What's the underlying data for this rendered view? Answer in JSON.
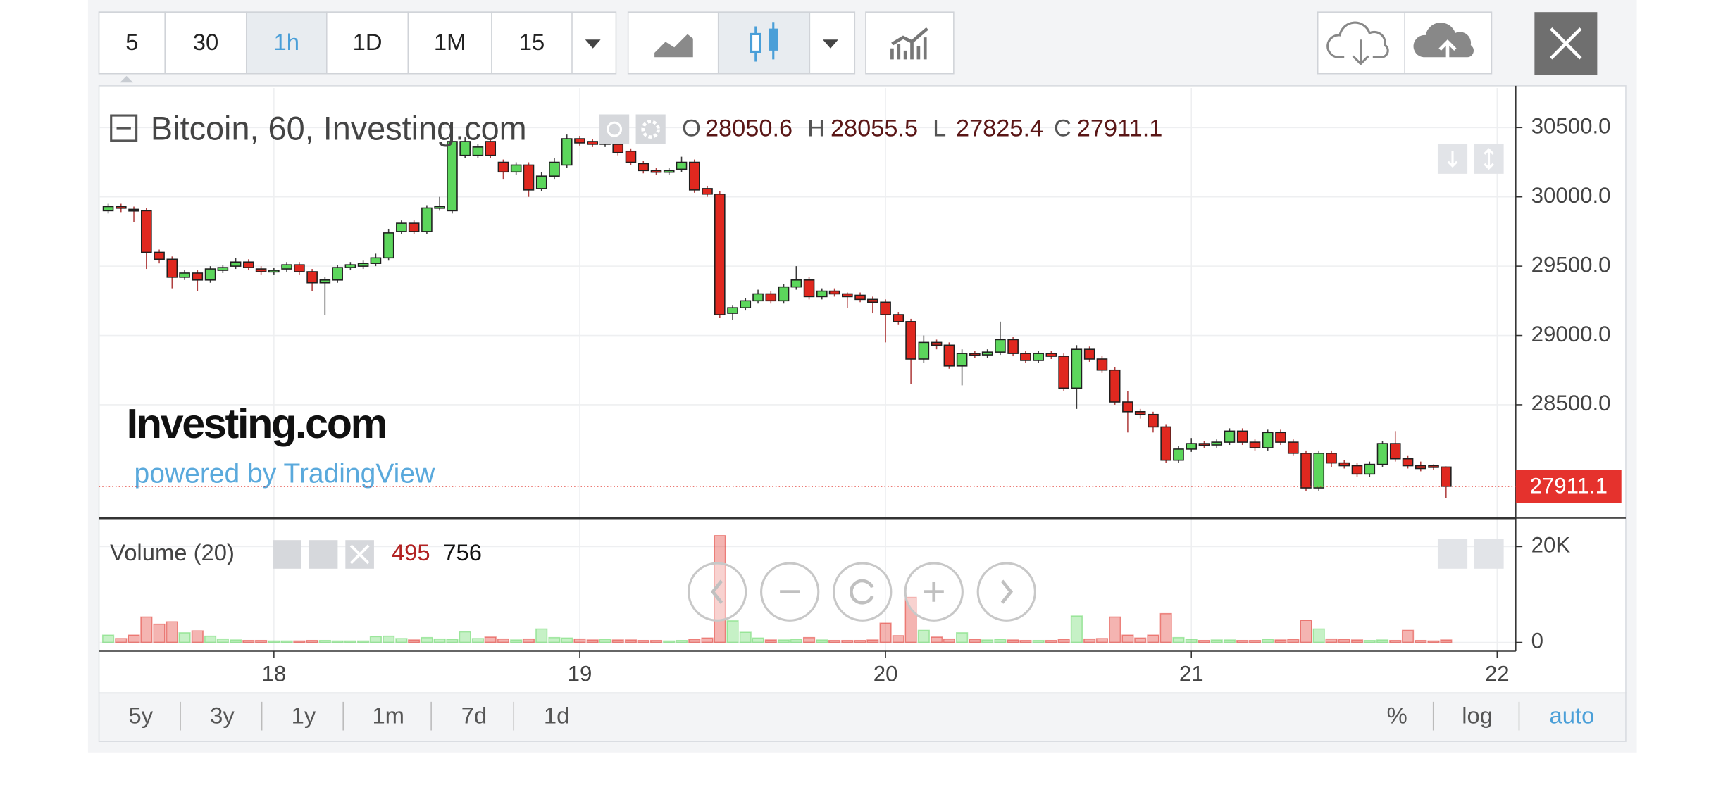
{
  "toolbar": {
    "intervals": [
      "5",
      "30",
      "1h",
      "1D",
      "1M",
      "15"
    ],
    "active_interval_index": 2
  },
  "range_buttons": [
    "5y",
    "3y",
    "1y",
    "1m",
    "7d",
    "1d"
  ],
  "scale_buttons": [
    "%",
    "log",
    "auto"
  ],
  "active_scale_index": 2,
  "chart_data": {
    "type": "candlestick",
    "title": "Bitcoin, 60, Investing.com",
    "legend_labels": [
      "O",
      "H",
      "L",
      "C"
    ],
    "watermark": "Investing.com",
    "watermark_subtitle": "powered by TradingView",
    "up_color": "#5cd65c",
    "down_color": "#e0281f",
    "grid": true,
    "xlim": [
      17.428,
      22.061
    ],
    "xticks": [
      18,
      19,
      20,
      21,
      22
    ],
    "ylim": [
      27690,
      30786
    ],
    "yticks": [
      {
        "value": 28500,
        "label": "28500.0"
      },
      {
        "value": 29000,
        "label": "29000.0"
      },
      {
        "value": 29500,
        "label": "29500.0"
      },
      {
        "value": 30000,
        "label": "30000.0"
      },
      {
        "value": 30500,
        "label": "30500.0"
      }
    ],
    "x": [
      17.458,
      17.5,
      17.542,
      17.583,
      17.625,
      17.667,
      17.708,
      17.75,
      17.792,
      17.833,
      17.875,
      17.917,
      17.958,
      18,
      18.042,
      18.083,
      18.125,
      18.167,
      18.208,
      18.25,
      18.292,
      18.333,
      18.375,
      18.417,
      18.458,
      18.5,
      18.542,
      18.583,
      18.625,
      18.667,
      18.708,
      18.75,
      18.792,
      18.833,
      18.875,
      18.917,
      18.958,
      19,
      19.042,
      19.083,
      19.125,
      19.167,
      19.208,
      19.25,
      19.292,
      19.333,
      19.375,
      19.417,
      19.458,
      19.5,
      19.542,
      19.583,
      19.625,
      19.667,
      19.708,
      19.75,
      19.792,
      19.833,
      19.875,
      19.917,
      19.958,
      20,
      20.042,
      20.083,
      20.125,
      20.167,
      20.208,
      20.25,
      20.292,
      20.333,
      20.375,
      20.417,
      20.458,
      20.5,
      20.542,
      20.583,
      20.625,
      20.667,
      20.708,
      20.75,
      20.792,
      20.833,
      20.875,
      20.917,
      20.958,
      21,
      21.042,
      21.083,
      21.125,
      21.167,
      21.208,
      21.25,
      21.292,
      21.333,
      21.375,
      21.417,
      21.458,
      21.5,
      21.542,
      21.583,
      21.625,
      21.667,
      21.708,
      21.75,
      21.792,
      21.833
    ],
    "open": [
      29900,
      29930,
      29910,
      29900,
      29600,
      29550,
      29420,
      29450,
      29400,
      29470,
      29500,
      29530,
      29480,
      29460,
      29480,
      29510,
      29460,
      29380,
      29400,
      29490,
      29500,
      29520,
      29560,
      29750,
      29810,
      29750,
      29920,
      29900,
      30300,
      30300,
      30400,
      30250,
      30180,
      30230,
      30060,
      30150,
      30230,
      30420,
      30400,
      30380,
      30380,
      30330,
      30240,
      30190,
      30180,
      30200,
      30250,
      30060,
      30020,
      29160,
      29200,
      29250,
      29300,
      29250,
      29350,
      29400,
      29280,
      29320,
      29300,
      29290,
      29260,
      29240,
      29150,
      29100,
      28830,
      28950,
      28930,
      28780,
      28870,
      28860,
      28880,
      28970,
      28870,
      28820,
      28870,
      28850,
      28620,
      28900,
      28830,
      28750,
      28520,
      28450,
      28430,
      28340,
      28100,
      28180,
      28220,
      28210,
      28230,
      28310,
      28230,
      28190,
      28300,
      28230,
      28150,
      27900,
      28150,
      28080,
      28060,
      28000,
      28070,
      28220,
      28110,
      28060,
      28060,
      28050.6
    ],
    "high": [
      29950,
      29950,
      29930,
      29920,
      29620,
      29570,
      29470,
      29470,
      29500,
      29510,
      29560,
      29550,
      29500,
      29490,
      29530,
      29530,
      29480,
      29420,
      29510,
      29530,
      29540,
      29590,
      29770,
      29830,
      29830,
      29940,
      30000,
      30420,
      30430,
      30380,
      30420,
      30270,
      30250,
      30250,
      30180,
      30280,
      30450,
      30440,
      30420,
      30420,
      30400,
      30350,
      30260,
      30210,
      30210,
      30290,
      30270,
      30080,
      30040,
      29220,
      29270,
      29330,
      29320,
      29370,
      29500,
      29420,
      29340,
      29340,
      29310,
      29310,
      29280,
      29260,
      29170,
      29120,
      29000,
      28970,
      28950,
      28900,
      28890,
      28900,
      29100,
      28990,
      28890,
      28890,
      28890,
      28870,
      28930,
      28920,
      28850,
      28770,
      28600,
      28470,
      28450,
      28360,
      28200,
      28260,
      28240,
      28250,
      28330,
      28330,
      28250,
      28320,
      28320,
      28250,
      28170,
      28170,
      28170,
      28100,
      28080,
      28090,
      28240,
      28310,
      28130,
      28090,
      28070,
      28055.5
    ],
    "low": [
      29880,
      29890,
      29820,
      29480,
      29520,
      29340,
      29400,
      29320,
      29380,
      29450,
      29480,
      29470,
      29440,
      29440,
      29460,
      29440,
      29320,
      29150,
      29380,
      29470,
      29480,
      29500,
      29540,
      29730,
      29730,
      29730,
      29900,
      29880,
      30280,
      30280,
      30280,
      30130,
      30160,
      30000,
      30040,
      30130,
      30210,
      30370,
      30360,
      30360,
      30300,
      30230,
      30170,
      30160,
      30160,
      30180,
      30030,
      30000,
      29130,
      29110,
      29180,
      29230,
      29230,
      29230,
      29330,
      29260,
      29260,
      29280,
      29200,
      29240,
      29160,
      28950,
      29080,
      28650,
      28800,
      28900,
      28760,
      28640,
      28840,
      28840,
      28860,
      28850,
      28800,
      28800,
      28830,
      28600,
      28470,
      28810,
      28730,
      28500,
      28300,
      28400,
      28300,
      28080,
      28080,
      28160,
      28190,
      28190,
      28210,
      28210,
      28170,
      28170,
      28210,
      28130,
      27880,
      27880,
      28050,
      28040,
      27980,
      27980,
      28050,
      28090,
      28040,
      28020,
      28030,
      27825.4
    ],
    "close": [
      29930,
      29920,
      29900,
      29600,
      29550,
      29420,
      29450,
      29400,
      29480,
      29490,
      29530,
      29490,
      29460,
      29470,
      29510,
      29460,
      29380,
      29400,
      29490,
      29510,
      29520,
      29560,
      29740,
      29810,
      29750,
      29920,
      29930,
      30400,
      30400,
      30360,
      30300,
      30180,
      30230,
      30050,
      30150,
      30250,
      30420,
      30390,
      30380,
      30400,
      30320,
      30250,
      30190,
      30180,
      30190,
      30250,
      30050,
      30020,
      29150,
      29200,
      29250,
      29300,
      29250,
      29350,
      29400,
      29280,
      29320,
      29300,
      29280,
      29260,
      29240,
      29150,
      29100,
      28830,
      28950,
      28930,
      28780,
      28870,
      28860,
      28880,
      28970,
      28870,
      28820,
      28870,
      28850,
      28620,
      28900,
      28830,
      28750,
      28520,
      28450,
      28430,
      28340,
      28100,
      28180,
      28220,
      28210,
      28230,
      28310,
      28230,
      28190,
      28300,
      28230,
      28150,
      27900,
      28150,
      28080,
      28060,
      28000,
      28070,
      28220,
      28110,
      28060,
      28040,
      28050,
      27911.1
    ],
    "volume": {
      "title": "Volume (20)",
      "ma_value": 756,
      "ylim": [
        -1840,
        25500
      ],
      "yticks": [
        0,
        {
          "value": 20000,
          "label": "20K"
        }
      ],
      "values": [
        1500,
        800,
        1500,
        5300,
        3800,
        4300,
        2000,
        2400,
        1300,
        700,
        500,
        400,
        400,
        300,
        300,
        300,
        400,
        400,
        300,
        300,
        300,
        1200,
        1300,
        800,
        500,
        1000,
        700,
        600,
        2200,
        800,
        1100,
        700,
        500,
        700,
        2800,
        1000,
        900,
        700,
        500,
        600,
        500,
        500,
        400,
        400,
        300,
        400,
        600,
        900,
        22300,
        4500,
        2100,
        900,
        500,
        500,
        600,
        1000,
        500,
        400,
        400,
        400,
        500,
        4000,
        1400,
        9400,
        2500,
        1100,
        700,
        2000,
        600,
        500,
        600,
        500,
        400,
        400,
        400,
        600,
        5500,
        700,
        800,
        5300,
        1500,
        900,
        1500,
        6000,
        1000,
        600,
        400,
        500,
        500,
        400,
        400,
        600,
        500,
        600,
        4600,
        2800,
        700,
        600,
        500,
        400,
        500,
        400,
        2500,
        400,
        300,
        495
      ]
    }
  }
}
